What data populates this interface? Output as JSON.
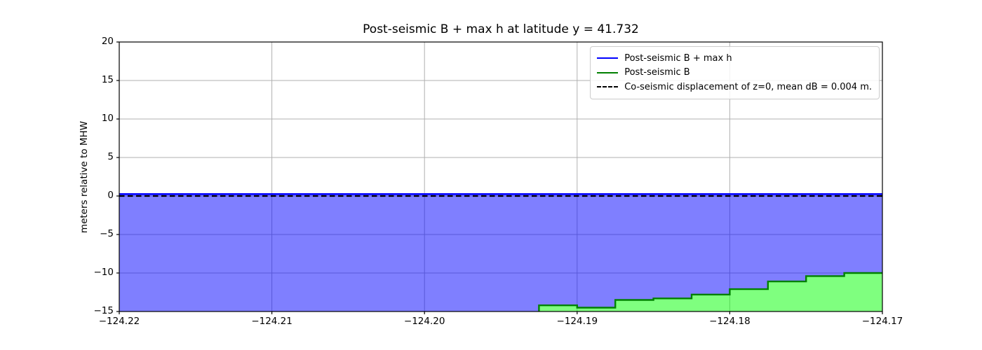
{
  "chart_data": {
    "type": "line",
    "title": "Post-seismic B + max h at latitude y = 41.732",
    "xlabel": "",
    "ylabel": "meters relative to MHW",
    "xlim": [
      -124.22,
      -124.17
    ],
    "ylim": [
      -15,
      20
    ],
    "xticks": [
      -124.22,
      -124.21,
      -124.2,
      -124.19,
      -124.18,
      -124.17
    ],
    "xtick_labels": [
      "−124.22",
      "−124.21",
      "−124.20",
      "−124.19",
      "−124.18",
      "−124.17"
    ],
    "yticks": [
      20,
      15,
      10,
      5,
      0,
      -5,
      -10,
      -15
    ],
    "ytick_labels": [
      "20",
      "15",
      "10",
      "5",
      "0",
      "−5",
      "−10",
      "−15"
    ],
    "grid": true,
    "grid_color": "#b0b0b0",
    "axis_color": "#000000",
    "legend_position": "upper right",
    "series": [
      {
        "name": "Post-seismic B + max h",
        "type": "hline-fill",
        "line_style": "solid",
        "color": "#0000ff",
        "fill_color": "rgba(0,0,255,0.5)",
        "y": 0.25,
        "fill_to": -15
      },
      {
        "name": "Post-seismic B",
        "type": "steps",
        "line_style": "solid",
        "color": "#008000",
        "fill_color": "rgba(0,255,0,0.5)",
        "base": -15,
        "step_edges_x": [
          -124.1925,
          -124.19,
          -124.1875,
          -124.185,
          -124.1825,
          -124.18,
          -124.1775,
          -124.175,
          -124.1725,
          -124.17
        ],
        "step_values_y": [
          -14.2,
          -14.5,
          -13.5,
          -13.3,
          -12.8,
          -12.1,
          -11.1,
          -10.4,
          -10.0
        ]
      },
      {
        "name": "Co-seismic displacement of z=0, mean dB = 0.004 m.",
        "type": "hline",
        "line_style": "dashed",
        "color": "#000000",
        "y": 0
      }
    ]
  }
}
